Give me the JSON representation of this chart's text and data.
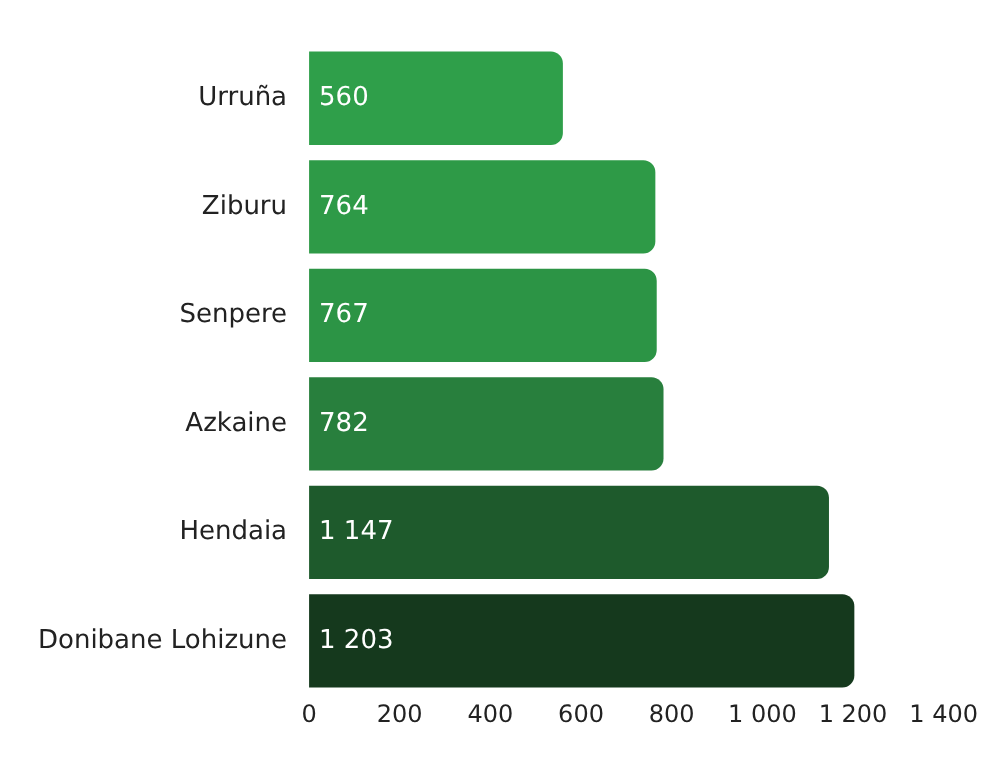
{
  "chart_data": {
    "type": "bar",
    "orientation": "horizontal",
    "categories": [
      "Urruña",
      "Ziburu",
      "Senpere",
      "Azkaine",
      "Hendaia",
      "Donibane Lohizune"
    ],
    "values": [
      560,
      764,
      767,
      782,
      1147,
      1203
    ],
    "colors": [
      "#2f9f4a",
      "#2e9a47",
      "#2c9445",
      "#287f3d",
      "#1e5a2c",
      "#15391d"
    ],
    "value_labels": [
      "560",
      "764",
      "767",
      "782",
      "1 147",
      "1 203"
    ],
    "xlim": [
      0,
      1400
    ],
    "xticks": [
      0,
      200,
      400,
      600,
      800,
      {
        "value": 1000,
        "label": "1 000"
      },
      {
        "value": 1200,
        "label": "1 200"
      },
      {
        "value": 1400,
        "label": "1 400"
      }
    ],
    "grid": false,
    "legend": false
  }
}
